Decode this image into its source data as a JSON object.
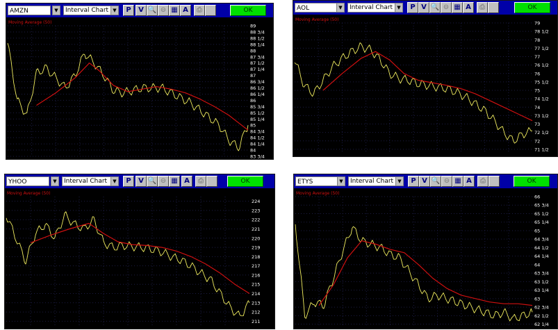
{
  "toolbar": {
    "chart_type": "Interval Chart",
    "buttons": [
      "P",
      "V",
      "A"
    ],
    "ok_label": "OK"
  },
  "ma_label": "Moving Average (50)",
  "colors": {
    "panel_bg": "#000000",
    "toolbar_bg": "#0000a8",
    "price": "#f2ee60",
    "ma": "#d01010",
    "ok": "#00e000"
  },
  "chart_data": [
    {
      "type": "line",
      "ticker": "AMZN",
      "ylim": [
        83.75,
        89
      ],
      "yticks": [
        "89",
        "88 3/4",
        "88 1/2",
        "88 1/4",
        "88",
        "87 3/4",
        "87 1/2",
        "87 1/4",
        "87",
        "86 3/4",
        "86 1/2",
        "86 1/4",
        "86",
        "85 3/4",
        "85 1/2",
        "85 1/4",
        "85",
        "84 3/4",
        "84 1/2",
        "84 1/4",
        "84",
        "83 3/4"
      ],
      "ytick_values": [
        89,
        88.75,
        88.5,
        88.25,
        88,
        87.75,
        87.5,
        87.25,
        87,
        86.75,
        86.5,
        86.25,
        86,
        85.75,
        85.5,
        85.25,
        85,
        84.75,
        84.5,
        84.25,
        84,
        83.75
      ],
      "series": [
        {
          "name": "Price",
          "x": [
            0,
            4,
            8,
            12,
            16,
            20,
            24,
            28,
            32,
            36,
            40,
            44,
            48,
            52,
            56,
            60,
            64,
            68,
            72,
            76,
            80,
            84,
            88,
            92,
            96,
            100
          ],
          "values": [
            88.3,
            86.0,
            85.4,
            87.1,
            87.3,
            86.9,
            86.5,
            87.0,
            87.9,
            87.5,
            87.0,
            86.4,
            86.3,
            86.4,
            86.5,
            86.5,
            86.5,
            86.3,
            86.1,
            85.9,
            85.6,
            85.3,
            85.0,
            84.4,
            84.1,
            85.0
          ]
        },
        {
          "name": "Moving Average (50)",
          "x": [
            12,
            20,
            28,
            34,
            38,
            44,
            50,
            56,
            62,
            68,
            74,
            80,
            86,
            92,
            96,
            100
          ],
          "values": [
            85.8,
            86.3,
            86.9,
            87.5,
            87.2,
            86.6,
            86.35,
            86.45,
            86.55,
            86.45,
            86.3,
            86.05,
            85.75,
            85.4,
            85.1,
            84.8
          ]
        }
      ]
    },
    {
      "type": "line",
      "ticker": "AOL",
      "ylim": [
        71.25,
        79
      ],
      "yticks": [
        "79",
        "78 1/2",
        "78",
        "77 1/2",
        "77",
        "76 1/2",
        "76",
        "75 1/2",
        "75",
        "74 1/2",
        "74",
        "73 1/2",
        "73",
        "72 1/2",
        "72",
        "71 1/2"
      ],
      "ytick_values": [
        79,
        78.5,
        78,
        77.5,
        77,
        76.5,
        76,
        75.5,
        75,
        74.5,
        74,
        73.5,
        73,
        72.5,
        72,
        71.5
      ],
      "series": [
        {
          "name": "Price",
          "x": [
            0,
            4,
            8,
            12,
            16,
            20,
            24,
            28,
            32,
            36,
            40,
            44,
            48,
            52,
            56,
            60,
            64,
            68,
            72,
            76,
            80,
            84,
            88,
            92,
            96,
            100
          ],
          "values": [
            76.8,
            75.3,
            74.8,
            75.6,
            76.4,
            76.9,
            77.3,
            77.6,
            77.4,
            76.8,
            76.0,
            75.7,
            75.6,
            75.4,
            75.3,
            75.2,
            75.1,
            74.9,
            74.6,
            74.2,
            73.8,
            73.2,
            72.5,
            72.0,
            72.4,
            72.6
          ]
        },
        {
          "name": "Moving Average (50)",
          "x": [
            12,
            20,
            28,
            34,
            40,
            46,
            52,
            58,
            64,
            70,
            76,
            82,
            88,
            94,
            100
          ],
          "values": [
            75.0,
            76.0,
            76.9,
            77.3,
            76.8,
            76.0,
            75.6,
            75.45,
            75.3,
            75.1,
            74.8,
            74.4,
            74.0,
            73.6,
            73.2
          ]
        }
      ]
    },
    {
      "type": "line",
      "ticker": "YHOO",
      "ylim": [
        210.5,
        224.5
      ],
      "yticks": [
        "224",
        "223",
        "222",
        "221",
        "220",
        "219",
        "218",
        "217",
        "216",
        "215",
        "214",
        "213",
        "212",
        "211"
      ],
      "ytick_values": [
        224,
        223,
        222,
        221,
        220,
        219,
        218,
        217,
        216,
        215,
        214,
        213,
        212,
        211
      ],
      "series": [
        {
          "name": "Price",
          "x": [
            0,
            4,
            8,
            12,
            16,
            20,
            24,
            28,
            32,
            36,
            40,
            44,
            48,
            52,
            56,
            60,
            64,
            68,
            72,
            76,
            80,
            84,
            88,
            92,
            96,
            100
          ],
          "values": [
            222.5,
            220.0,
            217.5,
            220.5,
            221.5,
            220.0,
            222.5,
            221.5,
            221.0,
            222.0,
            219.5,
            219.0,
            219.2,
            219.1,
            219.0,
            218.8,
            218.5,
            218.0,
            217.6,
            217.0,
            216.2,
            215.5,
            214.0,
            212.5,
            211.5,
            213.0
          ]
        },
        {
          "name": "Moving Average (50)",
          "x": [
            10,
            18,
            26,
            34,
            40,
            46,
            52,
            58,
            64,
            70,
            76,
            82,
            88,
            94,
            100
          ],
          "values": [
            219.5,
            220.3,
            221.0,
            221.6,
            220.5,
            219.6,
            219.3,
            219.2,
            219.0,
            218.6,
            218.0,
            217.2,
            216.2,
            215.0,
            214.0
          ]
        }
      ]
    },
    {
      "type": "line",
      "ticker": "ETYS",
      "ylim": [
        62.2,
        66
      ],
      "yticks": [
        "66",
        "65 3/4",
        "65 1/2",
        "65 1/4",
        "65",
        "64 3/4",
        "64 1/2",
        "64 1/4",
        "64",
        "63 3/4",
        "63 1/2",
        "63 1/4",
        "63",
        "62 3/4",
        "62 1/2",
        "62 1/4"
      ],
      "ytick_values": [
        66,
        65.75,
        65.5,
        65.25,
        65,
        64.75,
        64.5,
        64.25,
        64,
        63.75,
        63.5,
        63.25,
        63,
        62.75,
        62.5,
        62.25
      ],
      "series": [
        {
          "name": "Price",
          "x": [
            0,
            4,
            8,
            12,
            16,
            20,
            24,
            28,
            32,
            36,
            40,
            44,
            48,
            52,
            56,
            60,
            64,
            68,
            72,
            76,
            80,
            84,
            88,
            92,
            96,
            100
          ],
          "values": [
            65.2,
            62.5,
            62.9,
            62.8,
            63.6,
            64.4,
            65.1,
            64.7,
            64.6,
            64.5,
            64.3,
            64.2,
            63.8,
            63.4,
            63.0,
            63.1,
            63.0,
            62.9,
            62.8,
            62.7,
            62.6,
            62.5,
            62.6,
            62.4,
            62.5,
            62.6
          ]
        },
        {
          "name": "Moving Average (50)",
          "x": [
            10,
            16,
            22,
            28,
            34,
            40,
            46,
            52,
            58,
            64,
            70,
            76,
            82,
            88,
            94,
            100
          ],
          "values": [
            62.8,
            63.4,
            64.2,
            64.7,
            64.6,
            64.45,
            64.35,
            64.0,
            63.6,
            63.3,
            63.1,
            63.0,
            62.9,
            62.85,
            62.85,
            62.8
          ]
        }
      ]
    }
  ]
}
